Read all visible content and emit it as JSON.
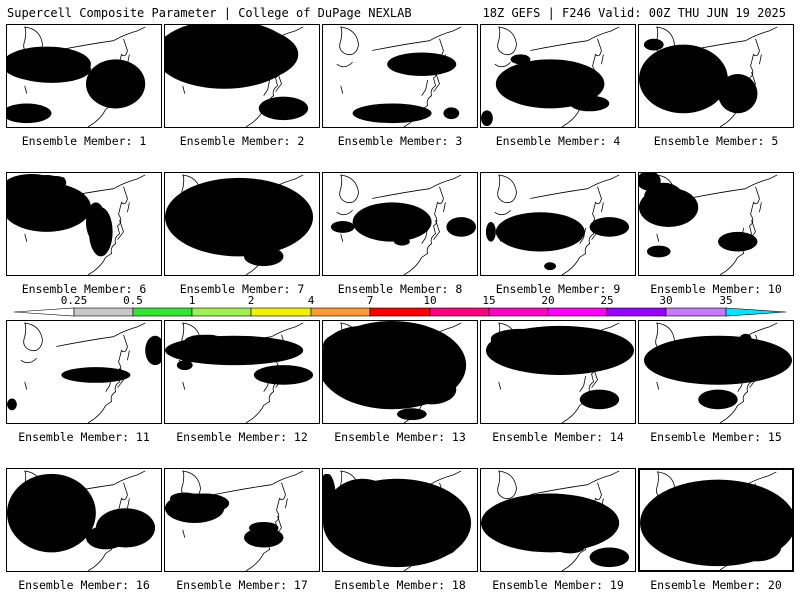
{
  "header": {
    "left": "Supercell Composite Parameter | College of DuPage NEXLAB",
    "right": "18Z GEFS | F246 Valid: 00Z THU JUN 19 2025"
  },
  "legend": {
    "ticks": [
      "0.25",
      "0.5",
      "1",
      "2",
      "4",
      "7",
      "10",
      "15",
      "20",
      "25",
      "30",
      "35"
    ],
    "colors": [
      "#ffffff",
      "#c8c8c8",
      "#32e632",
      "#a0f050",
      "#f0f000",
      "#ff9933",
      "#ff0000",
      "#ff0080",
      "#ff00c8",
      "#ff00ff",
      "#9600ff",
      "#c878ff",
      "#00e6ff"
    ]
  },
  "field_colors": {
    "gray": "#c8c8c8",
    "green": "#32e632",
    "lightgreen": "#a0f050",
    "yellow": "#f0f000",
    "orange": "#ff9933",
    "red": "#ff0000",
    "magenta": "#e6007e"
  },
  "members": [
    {
      "label": "Ensemble Member: 1"
    },
    {
      "label": "Ensemble Member: 2"
    },
    {
      "label": "Ensemble Member: 3"
    },
    {
      "label": "Ensemble Member: 4"
    },
    {
      "label": "Ensemble Member: 5"
    },
    {
      "label": "Ensemble Member: 6"
    },
    {
      "label": "Ensemble Member: 7"
    },
    {
      "label": "Ensemble Member: 8"
    },
    {
      "label": "Ensemble Member: 9"
    },
    {
      "label": "Ensemble Member: 10"
    },
    {
      "label": "Ensemble Member: 11"
    },
    {
      "label": "Ensemble Member: 12"
    },
    {
      "label": "Ensemble Member: 13"
    },
    {
      "label": "Ensemble Member: 14"
    },
    {
      "label": "Ensemble Member: 15"
    },
    {
      "label": "Ensemble Member: 16"
    },
    {
      "label": "Ensemble Member: 17"
    },
    {
      "label": "Ensemble Member: 18"
    },
    {
      "label": "Ensemble Member: 19"
    },
    {
      "label": "Ensemble Member: 20"
    }
  ]
}
